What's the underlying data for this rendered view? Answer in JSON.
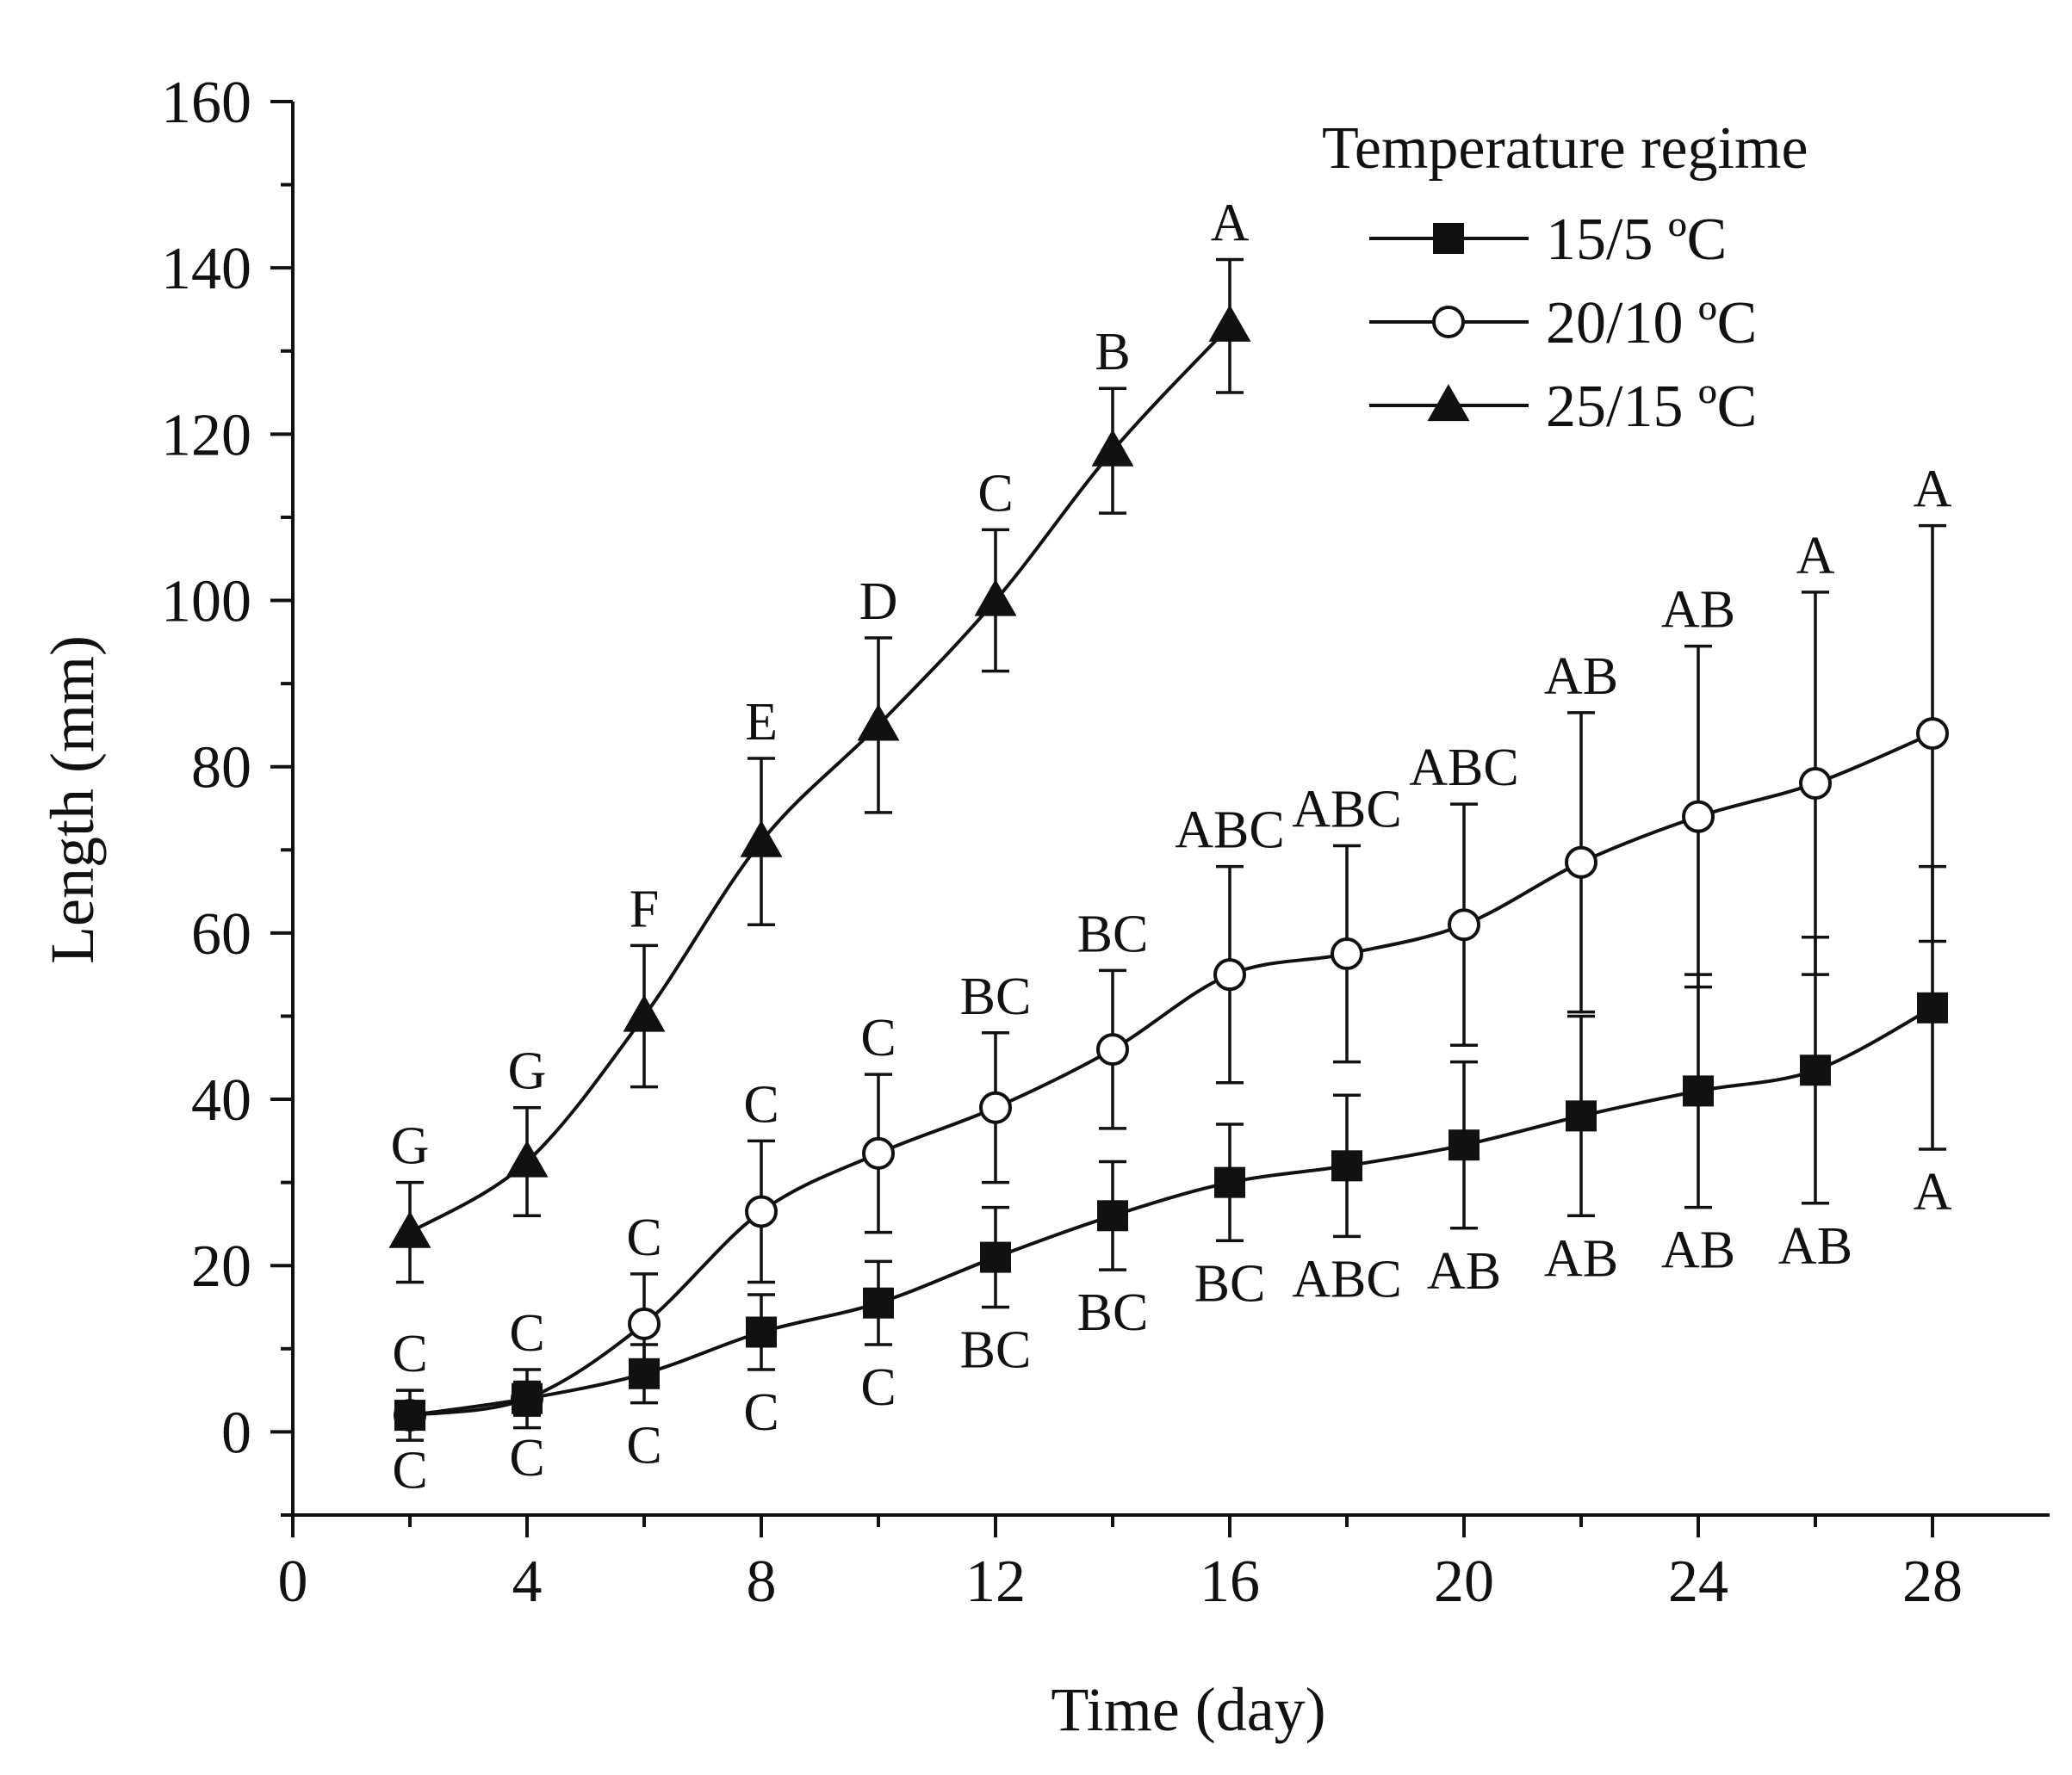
{
  "chart_data": {
    "type": "line",
    "title": "",
    "xlabel": "Time (day)",
    "ylabel": "Length (mm)",
    "xlim": [
      0,
      30
    ],
    "ylim": [
      -10,
      160
    ],
    "xticks": [
      0,
      4,
      8,
      12,
      16,
      20,
      24,
      28
    ],
    "yticks": [
      0,
      20,
      40,
      60,
      80,
      100,
      120,
      140,
      160
    ],
    "grid": false,
    "legend": {
      "title": "Temperature regime",
      "position": "top-right"
    },
    "series": [
      {
        "name": "15/5   ºC",
        "marker": "square-filled",
        "x": [
          2,
          4,
          6,
          8,
          10,
          12,
          14,
          16,
          18,
          20,
          22,
          24,
          26,
          28
        ],
        "y": [
          2,
          4,
          7,
          12,
          15.5,
          21,
          26,
          30,
          32,
          34.5,
          38,
          41,
          43.5,
          51
        ],
        "err": [
          1.5,
          2,
          3.5,
          4.5,
          5,
          6,
          6.5,
          7,
          8.5,
          10,
          12,
          14,
          16,
          17
        ],
        "labels": [
          "C",
          "C",
          "C",
          "C",
          "C",
          "BC",
          "BC",
          "BC",
          "ABC",
          "AB",
          "AB",
          "AB",
          "AB",
          "A"
        ],
        "label_pos": "below"
      },
      {
        "name": "20/10 ºC",
        "marker": "circle-open",
        "x": [
          2,
          4,
          6,
          8,
          10,
          12,
          14,
          16,
          18,
          20,
          22,
          24,
          26,
          28
        ],
        "y": [
          2,
          4,
          13,
          26.5,
          33.5,
          39,
          46,
          55,
          57.5,
          61,
          68.5,
          74,
          78,
          84
        ],
        "err": [
          3,
          3.5,
          6,
          8.5,
          9.5,
          9,
          9.5,
          13,
          13,
          14.5,
          18,
          20.5,
          23,
          25
        ],
        "labels": [
          "C",
          "C",
          "C",
          "C",
          "C",
          "BC",
          "BC",
          "ABC",
          "ABC",
          "ABC",
          "AB",
          "AB",
          "A",
          "A"
        ],
        "label_pos": "above"
      },
      {
        "name": "25/15 ºC",
        "marker": "triangle-filled",
        "x": [
          2,
          4,
          6,
          8,
          10,
          12,
          14,
          16
        ],
        "y": [
          24,
          32.5,
          50,
          71,
          85,
          100,
          118,
          133
        ],
        "err": [
          6,
          6.5,
          8.5,
          10,
          10.5,
          8.5,
          7.5,
          8
        ],
        "labels": [
          "G",
          "G",
          "F",
          "E",
          "D",
          "C",
          "B",
          "A"
        ],
        "label_pos": "above"
      }
    ]
  }
}
